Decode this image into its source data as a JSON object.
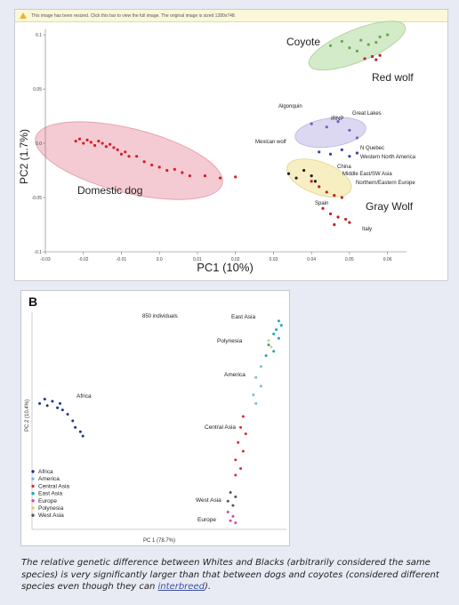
{
  "notice": "This image has been resized. Click this bar to view the full image. The original image is sized 1280x748.",
  "caption": {
    "text": "The relative genetic difference between Whites and Blacks (arbitrarily considered the same species) is very significantly larger than that between dogs and coyotes (considered different species even though they can",
    "link": "interbreed",
    "tail": ")."
  },
  "chart_data": [
    {
      "type": "scatter",
      "xlabel": "PC1 (10%)",
      "ylabel": "PC2 (1.7%)",
      "x_ticks": [
        "-0.03",
        "-0.02",
        "-0.01",
        "0.0",
        "0.01",
        "0.02",
        "0.03",
        "0.04",
        "0.05",
        "0.06"
      ],
      "y_ticks": [
        "0.1",
        "0.05",
        "0.0",
        "-0.05",
        "-0.1"
      ],
      "xlim": [
        -0.03,
        0.065
      ],
      "ylim": [
        -0.1,
        0.105
      ],
      "groups": [
        {
          "label": "Domestic dog",
          "color": "#d4202a",
          "points": [
            [
              -0.022,
              0.002
            ],
            [
              -0.021,
              0.004
            ],
            [
              -0.02,
              0.0
            ],
            [
              -0.019,
              0.003
            ],
            [
              -0.018,
              0.001
            ],
            [
              -0.017,
              -0.002
            ],
            [
              -0.016,
              0.002
            ],
            [
              -0.015,
              0.0
            ],
            [
              -0.014,
              -0.003
            ],
            [
              -0.013,
              -0.001
            ],
            [
              -0.012,
              -0.004
            ],
            [
              -0.011,
              -0.006
            ],
            [
              -0.01,
              -0.01
            ],
            [
              -0.009,
              -0.008
            ],
            [
              -0.008,
              -0.012
            ],
            [
              -0.006,
              -0.012
            ],
            [
              -0.004,
              -0.017
            ],
            [
              -0.002,
              -0.02
            ],
            [
              0.0,
              -0.022
            ],
            [
              0.002,
              -0.025
            ],
            [
              0.004,
              -0.024
            ],
            [
              0.006,
              -0.027
            ],
            [
              0.008,
              -0.03
            ],
            [
              0.012,
              -0.03
            ],
            [
              0.016,
              -0.032
            ],
            [
              0.02,
              -0.031
            ]
          ]
        },
        {
          "label": "Coyote",
          "color": "#6aa84f",
          "points": [
            [
              0.045,
              0.09
            ],
            [
              0.048,
              0.094
            ],
            [
              0.05,
              0.088
            ],
            [
              0.053,
              0.095
            ],
            [
              0.055,
              0.091
            ],
            [
              0.058,
              0.098
            ],
            [
              0.06,
              0.1
            ],
            [
              0.052,
              0.085
            ],
            [
              0.057,
              0.093
            ]
          ]
        },
        {
          "label": "Red wolf",
          "color": "#c0202a",
          "points": [
            [
              0.054,
              0.078
            ],
            [
              0.056,
              0.08
            ],
            [
              0.058,
              0.081
            ],
            [
              0.057,
              0.077
            ]
          ]
        },
        {
          "label": "Gray Wolf",
          "color": "#c0202a",
          "points": [
            [
              0.04,
              -0.035
            ],
            [
              0.042,
              -0.04
            ],
            [
              0.044,
              -0.045
            ],
            [
              0.046,
              -0.048
            ],
            [
              0.048,
              -0.05
            ],
            [
              0.043,
              -0.06
            ],
            [
              0.045,
              -0.065
            ],
            [
              0.047,
              -0.068
            ],
            [
              0.049,
              -0.07
            ],
            [
              0.046,
              -0.075
            ],
            [
              0.05,
              -0.073
            ]
          ]
        },
        {
          "label": "Great Lakes",
          "color": "#6666cc",
          "points": [
            [
              0.04,
              0.018
            ],
            [
              0.044,
              0.015
            ],
            [
              0.047,
              0.02
            ],
            [
              0.05,
              0.012
            ],
            [
              0.052,
              0.005
            ]
          ]
        },
        {
          "label": "Western North America",
          "color": "#3344aa",
          "points": [
            [
              0.042,
              -0.008
            ],
            [
              0.045,
              -0.01
            ],
            [
              0.048,
              -0.006
            ],
            [
              0.05,
              -0.012
            ],
            [
              0.052,
              -0.009
            ]
          ]
        },
        {
          "label": "Northern/Eastern Europe",
          "color": "#222222",
          "points": [
            [
              0.034,
              -0.028
            ],
            [
              0.036,
              -0.032
            ],
            [
              0.038,
              -0.025
            ],
            [
              0.04,
              -0.03
            ],
            [
              0.041,
              -0.035
            ]
          ]
        }
      ],
      "labels": [
        "Coyote",
        "Red wolf",
        "Domestic dog",
        "Algonquin",
        "IRNP",
        "Great Lakes",
        "Mexican wolf",
        "N Quebec",
        "Western North America",
        "China",
        "Middle East/SW Asia",
        "Northern/Eastern Europe",
        "Spain",
        "Gray Wolf",
        "Italy"
      ]
    },
    {
      "type": "scatter",
      "panel_label": "B",
      "note": "850 individuals",
      "xlabel": "PC 1 (78.7%)",
      "ylabel": "PC 2 (10.4%)",
      "legend": [
        {
          "label": "Africa",
          "color": "#223388"
        },
        {
          "label": "America",
          "color": "#7fb8d8"
        },
        {
          "label": "Central Asia",
          "color": "#d2313b"
        },
        {
          "label": "East Asia",
          "color": "#1ea6b0"
        },
        {
          "label": "Europe",
          "color": "#d04aa8"
        },
        {
          "label": "Polynesia",
          "color": "#e8c86a"
        },
        {
          "label": "West Asia",
          "color": "#555555"
        }
      ],
      "legend_position": "bottom-left",
      "groups": [
        {
          "label": "Africa",
          "color": "#223388",
          "points": [
            [
              0.03,
              0.58
            ],
            [
              0.05,
              0.6
            ],
            [
              0.06,
              0.57
            ],
            [
              0.08,
              0.59
            ],
            [
              0.1,
              0.56
            ],
            [
              0.11,
              0.58
            ],
            [
              0.12,
              0.55
            ],
            [
              0.14,
              0.53
            ],
            [
              0.16,
              0.5
            ],
            [
              0.17,
              0.47
            ],
            [
              0.19,
              0.45
            ],
            [
              0.2,
              0.43
            ]
          ]
        },
        {
          "label": "East Asia",
          "color": "#1ea6b0",
          "points": [
            [
              0.97,
              0.96
            ],
            [
              0.98,
              0.94
            ],
            [
              0.96,
              0.92
            ],
            [
              0.95,
              0.9
            ],
            [
              0.97,
              0.88
            ],
            [
              0.93,
              0.85
            ],
            [
              0.95,
              0.82
            ],
            [
              0.92,
              0.8
            ]
          ]
        },
        {
          "label": "Polynesia",
          "color": "#e8c86a",
          "points": [
            [
              0.93,
              0.87
            ],
            [
              0.94,
              0.84
            ]
          ]
        },
        {
          "label": "America",
          "color": "#7fb8d8",
          "points": [
            [
              0.9,
              0.75
            ],
            [
              0.88,
              0.7
            ],
            [
              0.9,
              0.66
            ],
            [
              0.87,
              0.62
            ],
            [
              0.88,
              0.58
            ]
          ]
        },
        {
          "label": "Central Asia",
          "color": "#d2313b",
          "points": [
            [
              0.83,
              0.52
            ],
            [
              0.82,
              0.47
            ],
            [
              0.84,
              0.44
            ],
            [
              0.81,
              0.4
            ],
            [
              0.83,
              0.36
            ],
            [
              0.8,
              0.32
            ],
            [
              0.82,
              0.28
            ],
            [
              0.8,
              0.25
            ]
          ]
        },
        {
          "label": "West Asia",
          "color": "#555555",
          "points": [
            [
              0.78,
              0.17
            ],
            [
              0.8,
              0.15
            ],
            [
              0.77,
              0.13
            ],
            [
              0.79,
              0.11
            ]
          ]
        },
        {
          "label": "Europe",
          "color": "#d04aa8",
          "points": [
            [
              0.77,
              0.08
            ],
            [
              0.79,
              0.06
            ],
            [
              0.78,
              0.04
            ],
            [
              0.8,
              0.03
            ]
          ]
        }
      ],
      "labels": [
        "East Asia",
        "Polynesia",
        "America",
        "Africa",
        "Central Asia",
        "West Asia",
        "Europe"
      ]
    }
  ]
}
